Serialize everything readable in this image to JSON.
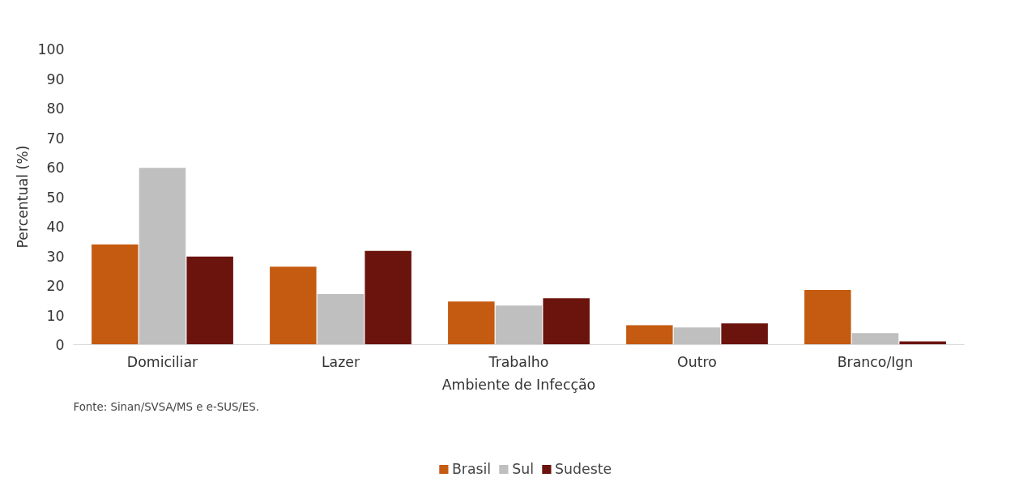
{
  "chart_data": {
    "type": "bar",
    "categories": [
      "Domiciliar",
      "Lazer",
      "Trabalho",
      "Outro",
      "Branco/Ign"
    ],
    "xlabel": "Ambiente de Infecção",
    "ylabel": "Percentual (%)",
    "series": [
      {
        "name": "Brasil",
        "color": "#c55a11",
        "values": [
          33.9,
          26.4,
          14.6,
          6.6,
          18.5
        ]
      },
      {
        "name": "Sul",
        "color": "#bfbfbf",
        "values": [
          59.8,
          17.1,
          13.2,
          5.8,
          3.9
        ]
      },
      {
        "name": "Sudeste",
        "color": "#6b130d",
        "values": [
          29.8,
          31.7,
          15.7,
          7.2,
          1.1
        ]
      }
    ],
    "ylim": [
      0,
      100
    ],
    "yticks": [
      0,
      10,
      20,
      30,
      40,
      50,
      60,
      70,
      80,
      90,
      100
    ],
    "grid": false,
    "legend": "bottom",
    "annotations": [
      "Fonte: Sinan/SVSA/MS e e-SUS/ES."
    ]
  }
}
